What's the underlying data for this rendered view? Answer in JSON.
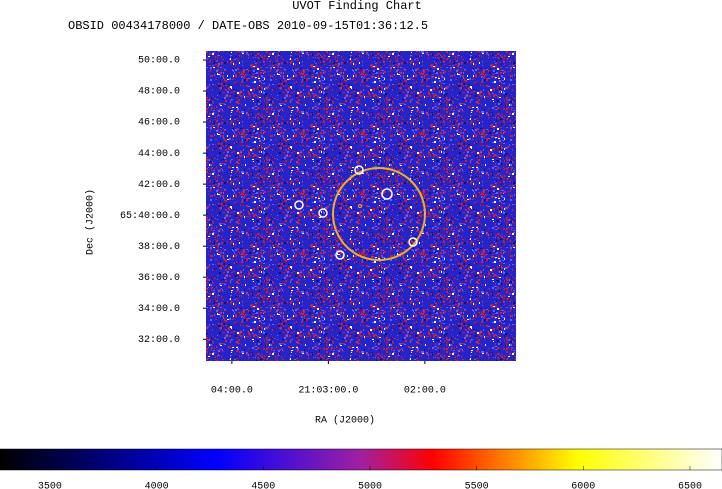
{
  "chart_data": {
    "type": "image",
    "title": "UVOT Finding Chart",
    "subtitle": "OBSID 00434178000 / DATE-OBS 2010-09-15T01:36:12.5",
    "xlabel": "RA (J2000)",
    "ylabel": "Dec (J2000)",
    "xlim": [
      316.067,
      315.264
    ],
    "xticks": [
      {
        "value": 316.0,
        "label": "04:00.0"
      },
      {
        "value": 315.75,
        "label": "21:03:00.0"
      },
      {
        "value": 315.5,
        "label": "02:00.0"
      }
    ],
    "ylim": [
      65.51,
      65.843
    ],
    "yticks": [
      {
        "value": 65.8333,
        "label": "50:00.0"
      },
      {
        "value": 65.8,
        "label": "48:00.0"
      },
      {
        "value": 65.7667,
        "label": "46:00.0"
      },
      {
        "value": 65.7333,
        "label": "44:00.0"
      },
      {
        "value": 65.7,
        "label": "42:00.0"
      },
      {
        "value": 65.6667,
        "label": "65:40:00.0"
      },
      {
        "value": 65.6333,
        "label": "38:00.0"
      },
      {
        "value": 65.6,
        "label": "36:00.0"
      },
      {
        "value": 65.5667,
        "label": "34:00.0"
      },
      {
        "value": 65.5333,
        "label": "32:00.0"
      }
    ],
    "colorbar": {
      "lim": [
        3266,
        6650
      ],
      "ticks": [
        3500,
        4000,
        4500,
        5000,
        5500,
        6000,
        6500
      ]
    }
  }
}
